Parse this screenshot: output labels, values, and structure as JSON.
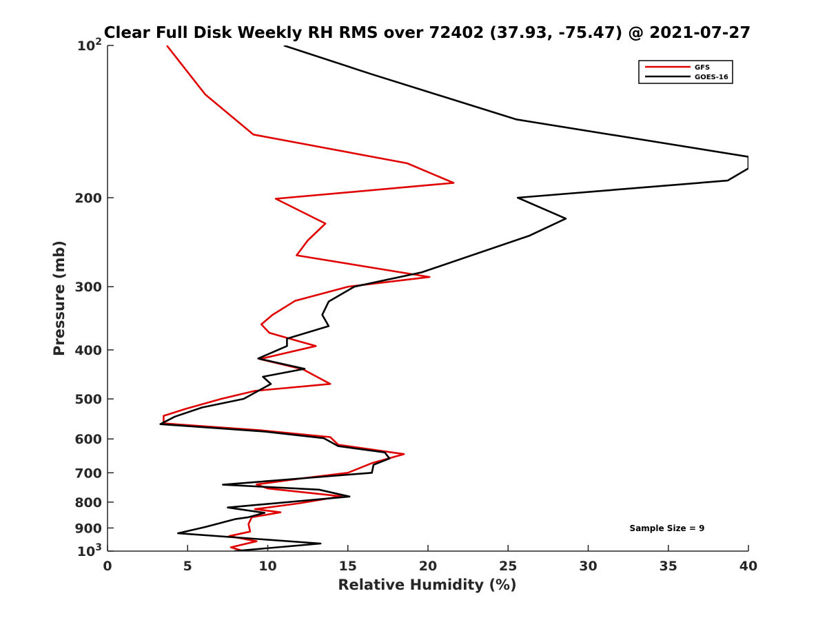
{
  "chart_data": {
    "type": "line",
    "title": "Clear Full Disk Weekly RH RMS over 72402 (37.93, -75.47) @ 2021-07-27",
    "xlabel": "Relative Humidity (%)",
    "ylabel": "Pressure (mb)",
    "xlim": [
      0,
      40
    ],
    "ylim": [
      100,
      1000
    ],
    "yscale": "log",
    "y_reversed": true,
    "grid": false,
    "legend_position": "top-right",
    "xticks": [
      0,
      5,
      10,
      15,
      20,
      25,
      30,
      35,
      40
    ],
    "xtick_labels": [
      "0",
      "5",
      "10",
      "15",
      "20",
      "25",
      "30",
      "35",
      "40"
    ],
    "yticks": [
      100,
      200,
      300,
      400,
      500,
      600,
      700,
      800,
      900,
      1000
    ],
    "ytick_labels": [
      {
        "base": "10",
        "exp": "2"
      },
      {
        "base": "200"
      },
      {
        "base": "300"
      },
      {
        "base": "400"
      },
      {
        "base": "500"
      },
      {
        "base": "600"
      },
      {
        "base": "700"
      },
      {
        "base": "800"
      },
      {
        "base": "900"
      },
      {
        "base": "10",
        "exp": "3"
      }
    ],
    "annotation": "Sample Size = 9",
    "series": [
      {
        "name": "GFS",
        "color": "#e00000",
        "points": [
          [
            3.7,
            100
          ],
          [
            6.1,
            125
          ],
          [
            9.1,
            150
          ],
          [
            18.7,
            171
          ],
          [
            21.6,
            187
          ],
          [
            10.5,
            201
          ],
          [
            13.6,
            225
          ],
          [
            12.5,
            243
          ],
          [
            11.8,
            260
          ],
          [
            20.1,
            287
          ],
          [
            15.0,
            300
          ],
          [
            11.7,
            320
          ],
          [
            10.3,
            341
          ],
          [
            9.6,
            356
          ],
          [
            10.1,
            370
          ],
          [
            12.0,
            385
          ],
          [
            13.0,
            393
          ],
          [
            9.5,
            417
          ],
          [
            12.2,
            437
          ],
          [
            13.9,
            467
          ],
          [
            9.2,
            482
          ],
          [
            7.1,
            500
          ],
          [
            4.9,
            523
          ],
          [
            3.5,
            540
          ],
          [
            3.5,
            559
          ],
          [
            9.6,
            577
          ],
          [
            13.9,
            595
          ],
          [
            14.4,
            616
          ],
          [
            18.5,
            643
          ],
          [
            16.5,
            670
          ],
          [
            15.0,
            700
          ],
          [
            12.0,
            719
          ],
          [
            9.3,
            738
          ],
          [
            10.0,
            752
          ],
          [
            14.6,
            779
          ],
          [
            12.0,
            804
          ],
          [
            9.2,
            826
          ],
          [
            10.8,
            838
          ],
          [
            9.0,
            857
          ],
          [
            8.8,
            884
          ],
          [
            8.9,
            915
          ],
          [
            7.6,
            934
          ],
          [
            9.3,
            956
          ],
          [
            7.7,
            983
          ],
          [
            8.5,
            1000
          ]
        ]
      },
      {
        "name": "GOES-16",
        "color": "#000000",
        "points": [
          [
            11.0,
            100
          ],
          [
            16.5,
            114
          ],
          [
            25.5,
            140
          ],
          [
            40.0,
            166
          ],
          [
            40.0,
            175
          ],
          [
            38.7,
            185
          ],
          [
            25.6,
            200
          ],
          [
            28.6,
            220
          ],
          [
            26.3,
            238
          ],
          [
            19.6,
            281
          ],
          [
            15.4,
            300
          ],
          [
            13.8,
            321
          ],
          [
            13.4,
            341
          ],
          [
            13.8,
            359
          ],
          [
            11.2,
            380
          ],
          [
            11.2,
            393
          ],
          [
            9.4,
            416
          ],
          [
            12.3,
            436
          ],
          [
            9.7,
            452
          ],
          [
            10.2,
            467
          ],
          [
            8.5,
            500
          ],
          [
            5.9,
            520
          ],
          [
            4.2,
            542
          ],
          [
            3.3,
            561
          ],
          [
            9.8,
            580
          ],
          [
            13.5,
            598
          ],
          [
            14.4,
            620
          ],
          [
            17.3,
            638
          ],
          [
            17.6,
            656
          ],
          [
            16.6,
            675
          ],
          [
            16.5,
            700
          ],
          [
            7.2,
            739
          ],
          [
            13.2,
            756
          ],
          [
            15.1,
            780
          ],
          [
            7.5,
            820
          ],
          [
            9.8,
            840
          ],
          [
            8.8,
            857
          ],
          [
            8.0,
            864
          ],
          [
            6.1,
            896
          ],
          [
            4.4,
            922
          ],
          [
            13.3,
            966
          ],
          [
            7.9,
            1000
          ]
        ]
      }
    ]
  }
}
